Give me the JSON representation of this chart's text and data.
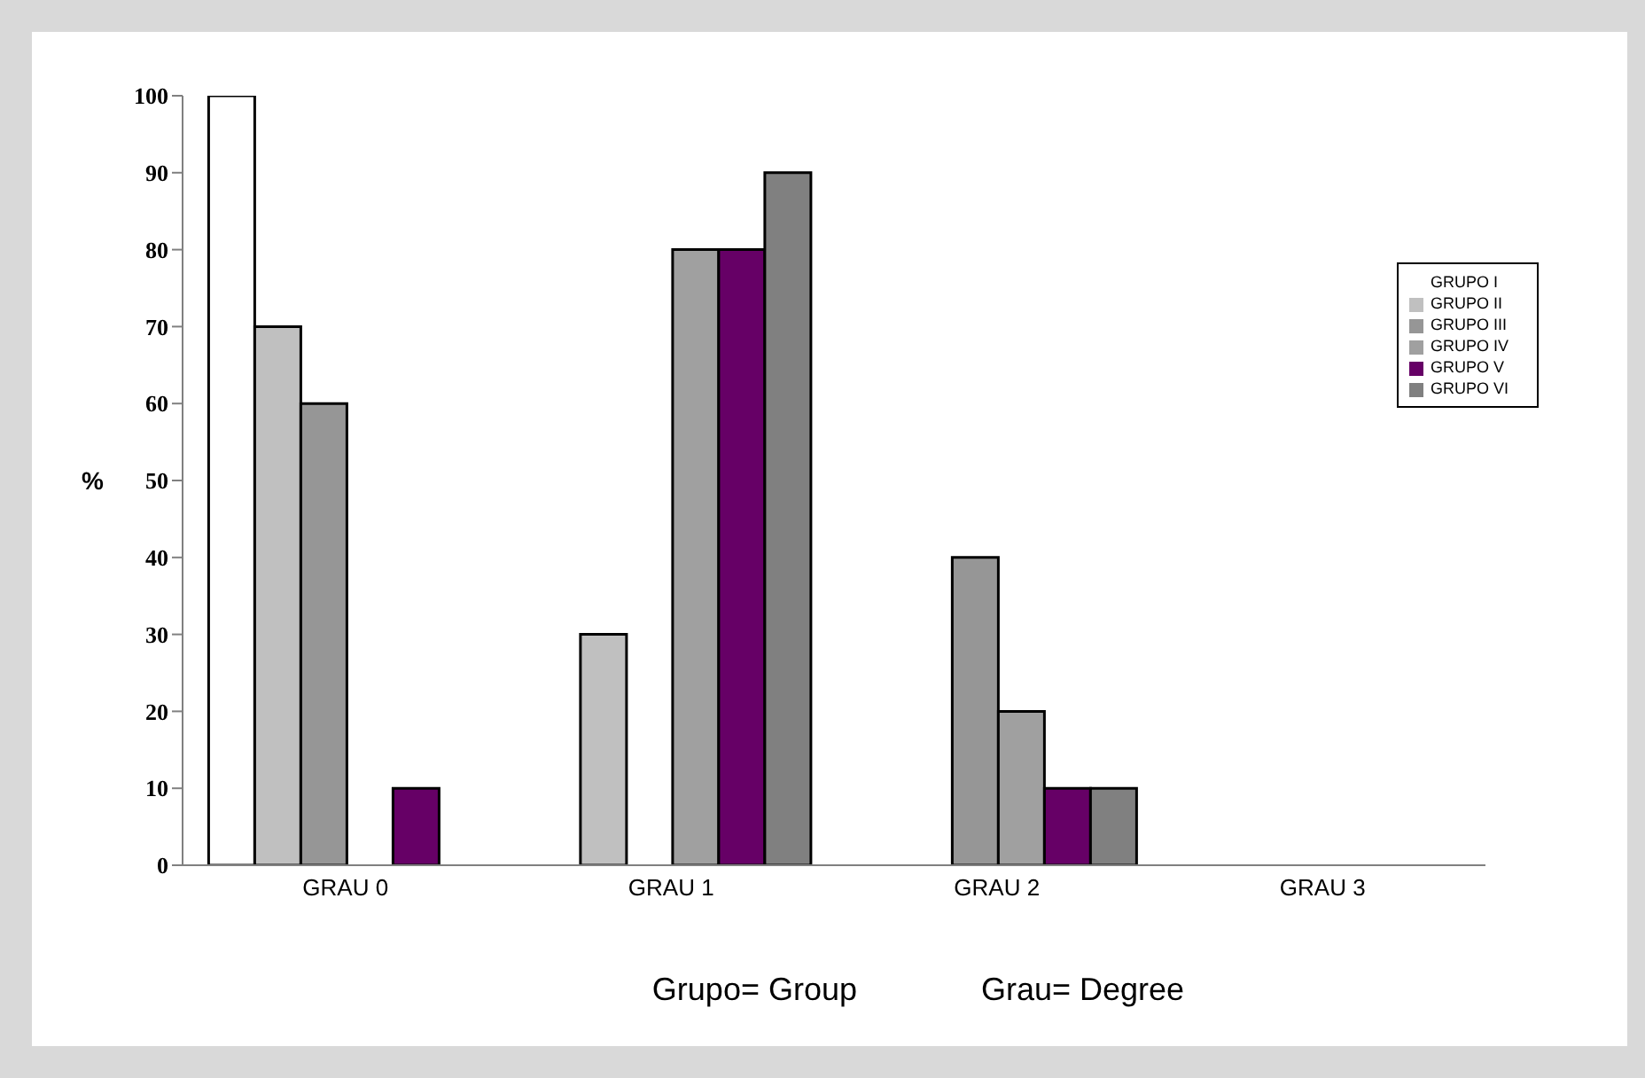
{
  "chart_data": {
    "type": "bar",
    "ylabel": "%",
    "categories": [
      "GRAU 0",
      "GRAU 1",
      "GRAU 2",
      "GRAU 3"
    ],
    "series": [
      {
        "name": "GRUPO I",
        "color": "#ffffff",
        "values": [
          100,
          0,
          0,
          0
        ]
      },
      {
        "name": "GRUPO II",
        "color": "#c0c0c0",
        "values": [
          70,
          30,
          0,
          0
        ]
      },
      {
        "name": "GRUPO III",
        "color": "#969696",
        "values": [
          60,
          0,
          40,
          0
        ]
      },
      {
        "name": "GRUPO IV",
        "color": "#a0a0a0",
        "values": [
          0,
          80,
          20,
          0
        ]
      },
      {
        "name": "GRUPO V",
        "color": "#660066",
        "values": [
          10,
          80,
          10,
          0
        ]
      },
      {
        "name": "GRUPO VI",
        "color": "#808080",
        "values": [
          0,
          90,
          10,
          0
        ]
      }
    ],
    "ylim": [
      0,
      100
    ],
    "yticks": [
      0,
      10,
      20,
      30,
      40,
      50,
      60,
      70,
      80,
      90,
      100
    ],
    "grid": false,
    "legend": "top right",
    "annotations": [
      "Grupo= Group",
      "Grau= Degree"
    ]
  }
}
